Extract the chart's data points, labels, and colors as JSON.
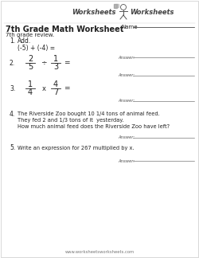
{
  "title": "7th Grade Math Worksheet",
  "name_label": "Name",
  "subtitle": "7th grade review.",
  "bg_color": "#ffffff",
  "footer": "www.worksheetsworksheets.com",
  "q1_instruction": "Add.",
  "q1_expr": "(-5) + (-4) =",
  "q2_frac1_num": "2",
  "q2_frac1_den": "5",
  "q2_op": "÷",
  "q2_frac2_num": "1",
  "q2_frac2_den": "3",
  "q3_frac1_num": "1",
  "q3_frac1_den": "4",
  "q3_op": "x",
  "q3_frac2_num": "4",
  "q3_frac2_den": "7",
  "q4_line1": "The Riverside Zoo bought 10 1/4 tons of animal feed.",
  "q4_line2": "They fed 2 and 1/3 tons of it  yesterday.",
  "q4_line3": "How much animal feed does the Riverside Zoo have left?",
  "q5_text": "Write an expression for 267 multiplied by x.",
  "answer_label": "Answer:",
  "logo_left": "Worksheets",
  "logo_right": "Worksheets",
  "dark": "#222222",
  "mid": "#555555",
  "light": "#888888"
}
